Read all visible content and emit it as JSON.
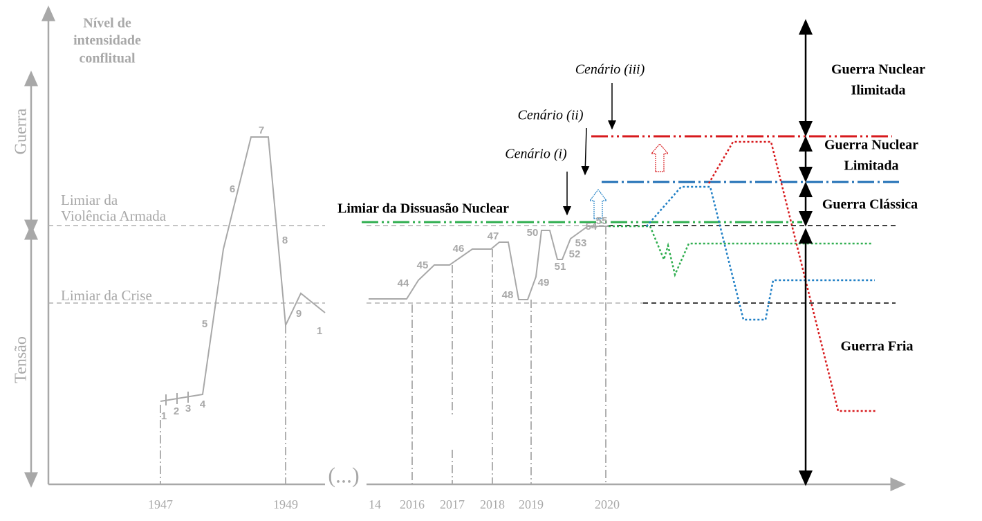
{
  "left_panel": {
    "y_axis_title": [
      "Nível de",
      "intensidade",
      "conflitual"
    ],
    "bands": [
      "Guerra",
      "Tensão"
    ],
    "thresholds": [
      [
        "Limiar da",
        "Violência Armada"
      ],
      [
        "Limiar da Crise"
      ]
    ],
    "point_labels": [
      "1",
      "2",
      "3",
      "4",
      "5",
      "6",
      "7",
      "8",
      "9",
      "1"
    ],
    "x_labels": [
      "1947",
      "1949"
    ]
  },
  "ellipsis": "(...)",
  "middle_panel": {
    "point_labels": [
      "44",
      "45",
      "46",
      "47",
      "48",
      "49",
      "50",
      "51",
      "52",
      "53",
      "54",
      "55"
    ],
    "x_labels": [
      "14",
      "2016",
      "2017",
      "2018",
      "2019",
      "2020"
    ]
  },
  "nuclear_threshold": "Limiar da Dissuasão Nuclear",
  "scenarios": [
    "Cenário (i)",
    "Cenário (ii)",
    "Cenário (iii)"
  ],
  "zones": [
    [
      "Guerra Nuclear",
      "Ilimitada"
    ],
    [
      "Guerra Nuclear",
      "Limitada"
    ],
    [
      "Guerra Clássica"
    ],
    [
      "Guerra Fria"
    ]
  ]
}
